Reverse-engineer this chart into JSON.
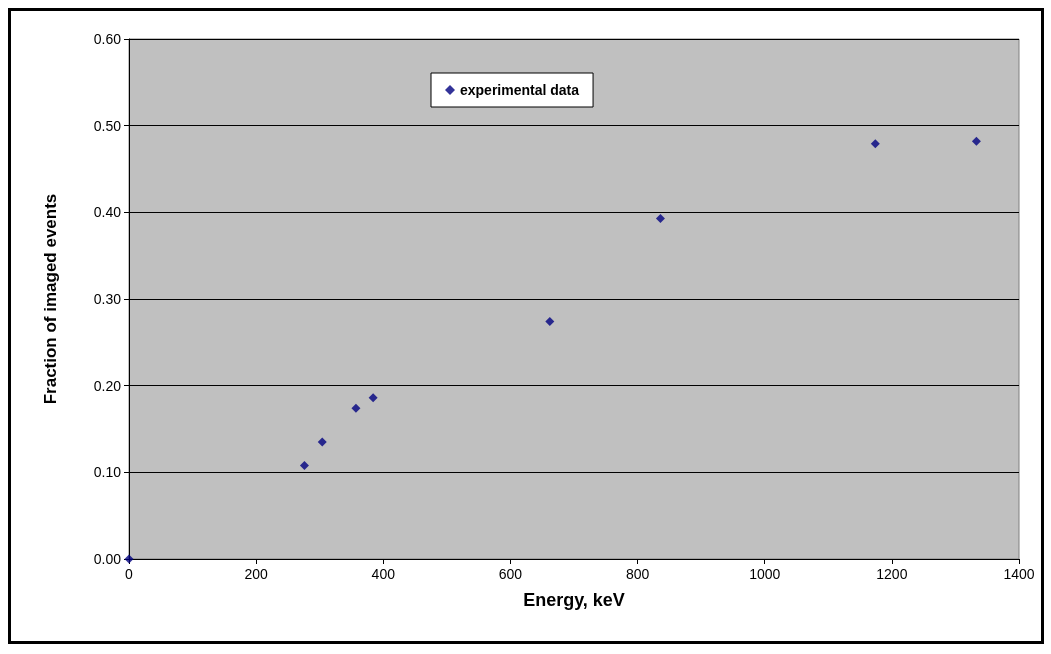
{
  "chart_data": {
    "type": "scatter",
    "xlabel": "Energy, keV",
    "ylabel": "Fraction of imaged events",
    "x": [
      0,
      276,
      304,
      357,
      384,
      662,
      836,
      1174,
      1333
    ],
    "series": [
      {
        "name": "experimental data",
        "color": "#000080",
        "values": [
          0.0,
          0.108,
          0.135,
          0.174,
          0.186,
          0.274,
          0.393,
          0.479,
          0.482
        ]
      }
    ],
    "xlim": [
      0,
      1400
    ],
    "xticks": [
      0,
      200,
      400,
      600,
      800,
      1000,
      1200,
      1400
    ],
    "ylim": [
      0,
      0.6
    ],
    "yticks": [
      {
        "value": 0,
        "label": "0.00"
      },
      {
        "value": 0.1,
        "label": "0.10"
      },
      {
        "value": 0.2,
        "label": "0.20"
      },
      {
        "value": 0.3,
        "label": "0.30"
      },
      {
        "value": 0.4,
        "label": "0.40"
      },
      {
        "value": 0.5,
        "label": "0.50"
      },
      {
        "value": 0.6,
        "label": "0.60"
      }
    ],
    "grid": "y",
    "legend": "top",
    "marker": "diamond"
  }
}
